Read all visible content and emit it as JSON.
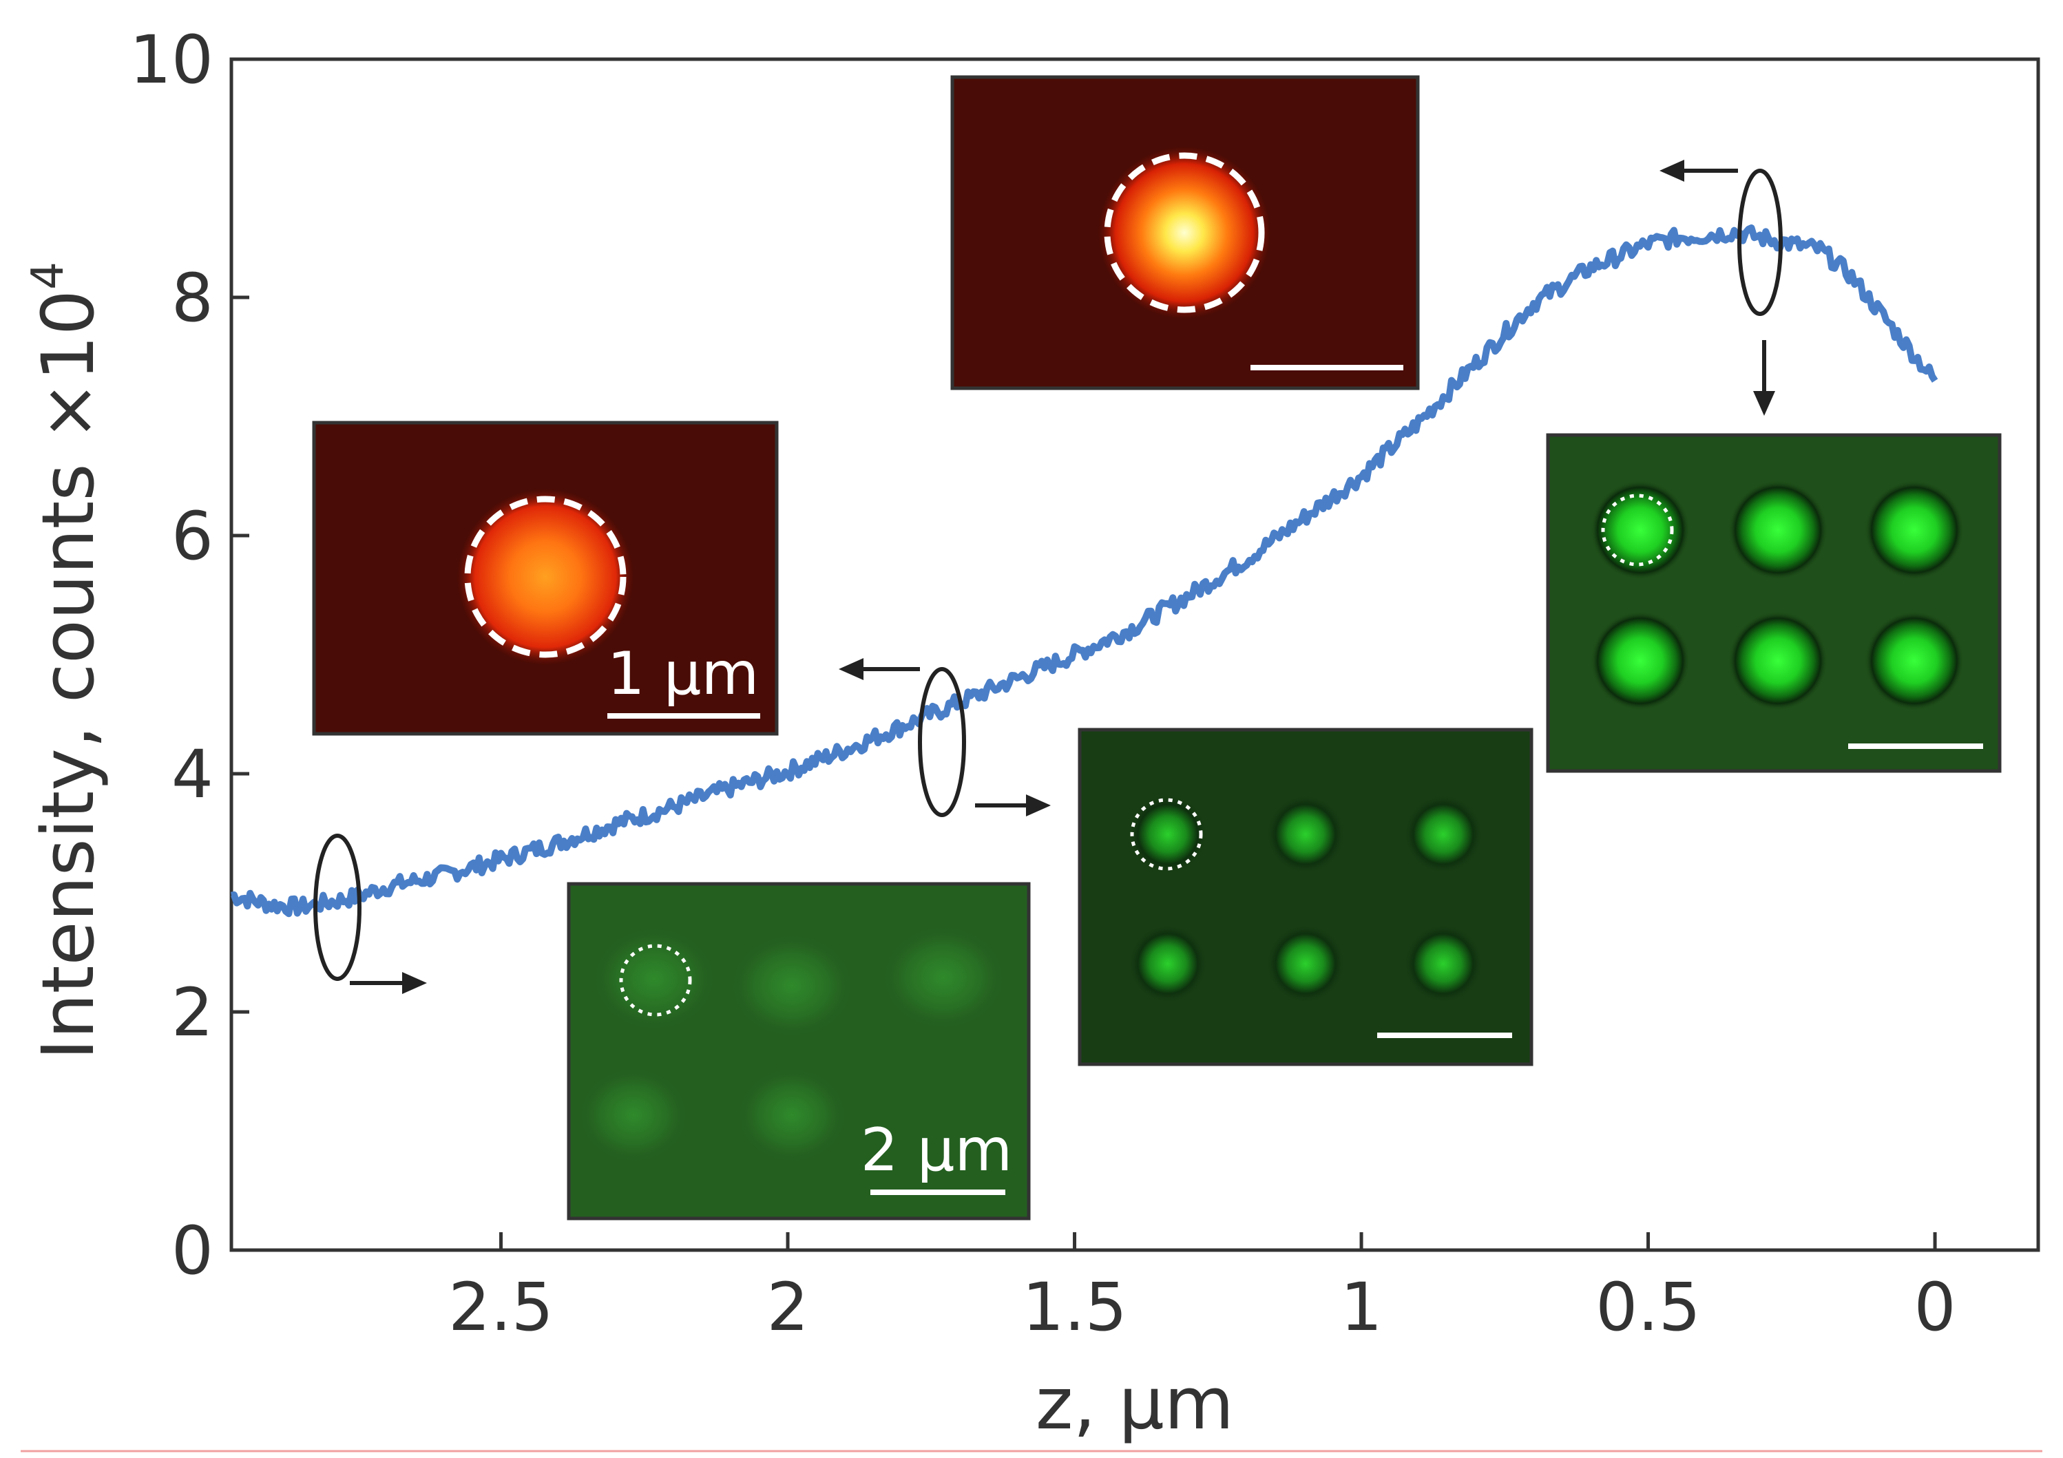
{
  "chart_data": {
    "type": "line",
    "title": "",
    "xlabel": "z, µm",
    "ylabel_main": "Intensity, counts ×10",
    "ylabel_exp": "4",
    "xlim": [
      2.97,
      -0.18
    ],
    "ylim": [
      0,
      10
    ],
    "xticks": [
      2.5,
      2,
      1.5,
      1,
      0.5,
      0
    ],
    "xtick_labels": [
      "2.5",
      "2",
      "1.5",
      "1",
      "0.5",
      "0"
    ],
    "yticks": [
      0,
      2,
      4,
      6,
      8,
      10
    ],
    "ytick_labels": [
      "0",
      "2",
      "4",
      "6",
      "8",
      "10"
    ],
    "grid": false,
    "line_color": "#4a7fc8",
    "series": [
      {
        "name": "intensity",
        "x": [
          2.97,
          2.9,
          2.85,
          2.8,
          2.75,
          2.7,
          2.6,
          2.5,
          2.4,
          2.3,
          2.2,
          2.1,
          2.0,
          1.9,
          1.8,
          1.7,
          1.6,
          1.5,
          1.4,
          1.3,
          1.2,
          1.1,
          1.0,
          0.9,
          0.8,
          0.7,
          0.6,
          0.5,
          0.45,
          0.4,
          0.35,
          0.3,
          0.25,
          0.2,
          0.15,
          0.1,
          0.05,
          0.0
        ],
        "values": [
          2.98,
          2.9,
          2.88,
          2.92,
          2.97,
          3.05,
          3.15,
          3.28,
          3.42,
          3.58,
          3.72,
          3.88,
          4.02,
          4.2,
          4.4,
          4.6,
          4.8,
          5.0,
          5.22,
          5.5,
          5.8,
          6.15,
          6.5,
          6.95,
          7.45,
          7.95,
          8.25,
          8.45,
          8.5,
          8.52,
          8.55,
          8.5,
          8.45,
          8.4,
          8.2,
          7.9,
          7.6,
          7.3
        ]
      }
    ]
  },
  "annotations": {
    "scale_1um": "1 µm",
    "scale_2um": "2 µm"
  },
  "colors": {
    "axis": "#333333",
    "red_bg": "#4a0c06",
    "green_bg": "#1f4f1a",
    "green_dark": "#183d14",
    "spot_green": "#22d72a"
  }
}
